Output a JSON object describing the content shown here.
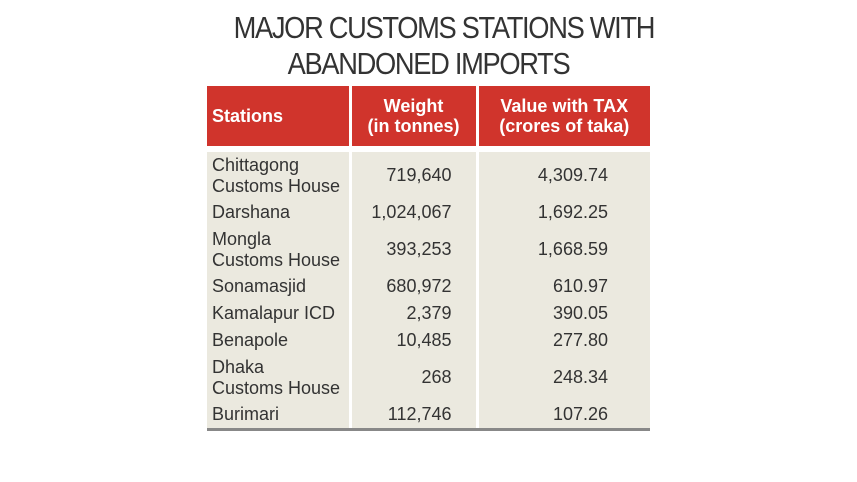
{
  "title_line1": "MAJOR CUSTOMS STATIONS WITH",
  "title_line2": "ABANDONED IMPORTS",
  "headers": {
    "stations": "Stations",
    "weight_line1": "Weight",
    "weight_line2": "(in tonnes)",
    "value_line1": "Value with TAX",
    "value_line2": "(crores of taka)"
  },
  "rows": [
    {
      "station_line1": "Chittagong",
      "station_line2": "Customs House",
      "weight": "719,640",
      "value": "4,309.74"
    },
    {
      "station_line1": "Darshana",
      "station_line2": "",
      "weight": "1,024,067",
      "value": "1,692.25"
    },
    {
      "station_line1": "Mongla",
      "station_line2": "Customs House",
      "weight": "393,253",
      "value": "1,668.59"
    },
    {
      "station_line1": "Sonamasjid",
      "station_line2": "",
      "weight": "680,972",
      "value": "610.97"
    },
    {
      "station_line1": "Kamalapur ICD",
      "station_line2": "",
      "weight": "2,379",
      "value": "390.05"
    },
    {
      "station_line1": "Benapole",
      "station_line2": "",
      "weight": "10,485",
      "value": "277.80"
    },
    {
      "station_line1": "Dhaka",
      "station_line2": "Customs House",
      "weight": "268",
      "value": "248.34"
    },
    {
      "station_line1": "Burimari",
      "station_line2": "",
      "weight": "112,746",
      "value": "107.26"
    }
  ],
  "colors": {
    "header_bg": "#d0342c",
    "row_bg": "#ebe9df",
    "title_text": "#333333"
  },
  "chart_data": {
    "type": "table",
    "title": "MAJOR CUSTOMS STATIONS WITH ABANDONED IMPORTS",
    "columns": [
      "Stations",
      "Weight (in tonnes)",
      "Value with TAX (crores of taka)"
    ],
    "categories": [
      "Chittagong Customs House",
      "Darshana",
      "Mongla Customs House",
      "Sonamasjid",
      "Kamalapur ICD",
      "Benapole",
      "Dhaka Customs House",
      "Burimari"
    ],
    "series": [
      {
        "name": "Weight (in tonnes)",
        "values": [
          719640,
          1024067,
          393253,
          680972,
          2379,
          10485,
          268,
          112746
        ]
      },
      {
        "name": "Value with TAX (crores of taka)",
        "values": [
          4309.74,
          1692.25,
          1668.59,
          610.97,
          390.05,
          277.8,
          248.34,
          107.26
        ]
      }
    ]
  }
}
